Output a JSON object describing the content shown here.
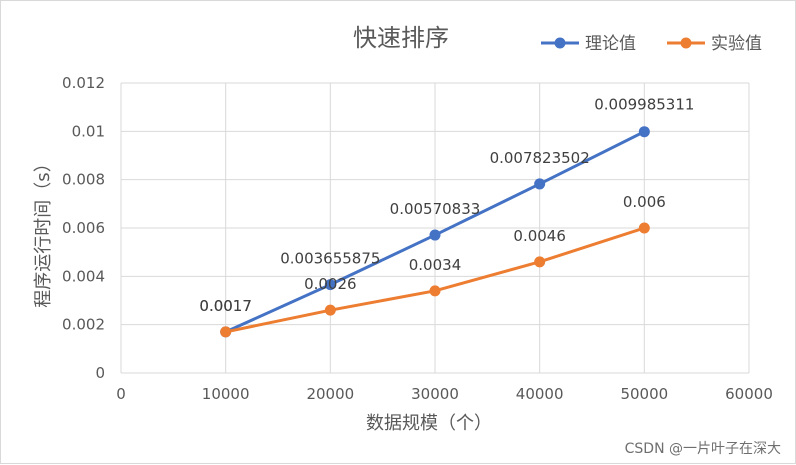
{
  "chart_data": {
    "type": "line",
    "title": "快速排序",
    "xlabel": "数据规模（个）",
    "ylabel": "程序运行时间（s）",
    "x": [
      10000,
      20000,
      30000,
      40000,
      50000
    ],
    "x_ticks": [
      "0",
      "10000",
      "20000",
      "30000",
      "40000",
      "50000",
      "60000"
    ],
    "y_ticks": [
      "0",
      "0.002",
      "0.004",
      "0.006",
      "0.008",
      "0.01",
      "0.012"
    ],
    "xlim": [
      0,
      60000
    ],
    "ylim": [
      0,
      0.012
    ],
    "grid": true,
    "legend_position": "top-right",
    "series": [
      {
        "name": "理论值",
        "color": "#4472c4",
        "values": [
          0.0017,
          0.003655875,
          0.00570833,
          0.007823502,
          0.009985311
        ],
        "labels": [
          "0.0017",
          "0.003655875",
          "0.00570833",
          "0.007823502",
          "0.009985311"
        ]
      },
      {
        "name": "实验值",
        "color": "#ed7d31",
        "values": [
          0.0017,
          0.0026,
          0.0034,
          0.0046,
          0.006
        ],
        "labels": [
          "0.0017",
          "0.0026",
          "0.0034",
          "0.0046",
          "0.006"
        ]
      }
    ]
  },
  "watermark": "CSDN @一片叶子在深大"
}
